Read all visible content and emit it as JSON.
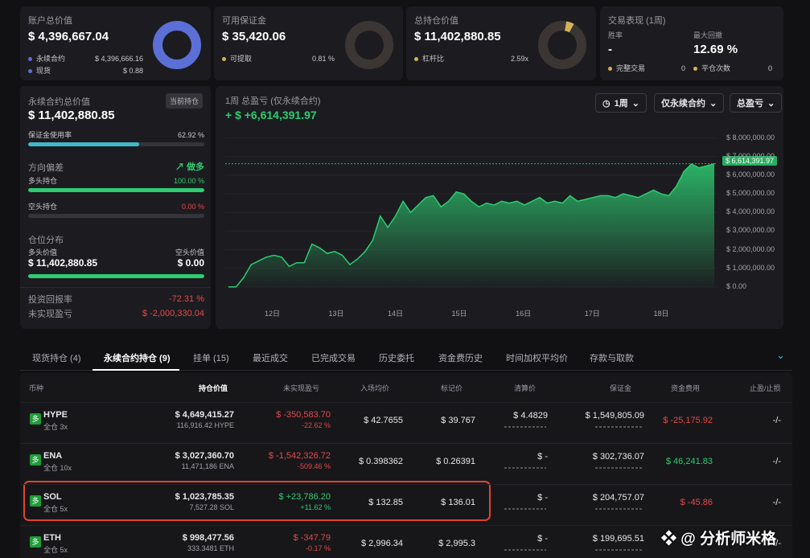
{
  "cards": {
    "total": {
      "title": "账户总价值",
      "value": "$ 4,396,667.04",
      "r1_label": "永续合约",
      "r1_value": "$ 4,396,666.16",
      "r2_label": "现货",
      "r2_value": "$ 0.88"
    },
    "margin": {
      "title": "可用保证金",
      "value": "$ 35,420.06",
      "r1_label": "可提取",
      "r1_value": "0.81 %"
    },
    "positions": {
      "title": "总持仓价值",
      "value": "$ 11,402,880.85",
      "r1_label": "杠杆比",
      "r1_value": "2.59x"
    },
    "perf": {
      "title": "交易表现 (1周)",
      "winrate_label": "胜率",
      "winrate_value": "-",
      "dd_label": "最大回撤",
      "dd_value": "12.69 %",
      "done_label": "完整交易",
      "done_value": "0",
      "flat_label": "平仓次数",
      "flat_value": "0"
    }
  },
  "colors": {
    "blue": "#5b6fd6",
    "green": "#2ecc71",
    "yellow": "#d4b25a",
    "red": "#e5484d"
  },
  "left": {
    "title": "永续合约总价值",
    "badge": "当前持仓",
    "value": "$ 11,402,880.85",
    "usage_label": "保证金使用率",
    "usage_value": "62.92 %",
    "usage_pct": 62.92,
    "bias_label": "方向偏差",
    "bias_value": "做多",
    "long_label": "多头持仓",
    "long_value": "100.00 %",
    "long_pct": 100,
    "short_label": "空头持仓",
    "short_value": "0.00 %",
    "short_pct": 0,
    "dist_label": "仓位分布",
    "dist_long_label": "多头价值",
    "dist_long_value": "$ 11,402,880.85",
    "dist_short_label": "空头价值",
    "dist_short_value": "$ 0.00",
    "roi_label": "投资回报率",
    "roi_value": "-72.31 %",
    "upnl_label": "未实现盈亏",
    "upnl_value": "$ -2,000,330.04"
  },
  "chart": {
    "title": "1周 总盈亏 (仅永续合约)",
    "value": "+ $ +6,614,391.97",
    "current_label": "$ 6,614,391.97",
    "dd1": "1周",
    "dd2": "仅永续合约",
    "dd3": "总盈亏"
  },
  "chart_data": {
    "type": "area",
    "ylim": [
      -1000000,
      8500000
    ],
    "yticks": [
      "$ 8,000,000.00",
      "$ 7,000,000.00",
      "$ 6,000,000.00",
      "$ 5,000,000.00",
      "$ 4,000,000.00",
      "$ 3,000,000.00",
      "$ 2,000,000.00",
      "$ 1,000,000.00",
      "$ 0.00"
    ],
    "ytick_values": [
      8000000,
      7000000,
      6000000,
      5000000,
      4000000,
      3000000,
      2000000,
      1000000,
      0
    ],
    "xticks": [
      "12日",
      "13日",
      "14日",
      "15日",
      "16日",
      "17日",
      "18日"
    ],
    "xtick_positions": [
      0.08,
      0.21,
      0.33,
      0.46,
      0.59,
      0.73,
      0.87
    ],
    "values": [
      0,
      0,
      500000,
      1200000,
      1400000,
      1600000,
      1700000,
      1600000,
      1100000,
      1300000,
      1300000,
      2300000,
      2100000,
      1800000,
      1900000,
      1700000,
      1200000,
      1500000,
      1900000,
      2500000,
      3800000,
      3200000,
      3800000,
      4600000,
      4000000,
      4400000,
      4800000,
      4900000,
      4300000,
      4600000,
      5100000,
      5000000,
      4600000,
      4300000,
      4500000,
      4400000,
      4600000,
      4500000,
      4600000,
      4400000,
      4600000,
      4800000,
      4500000,
      4600000,
      4500000,
      4900000,
      4600000,
      4700000,
      4800000,
      4900000,
      4900000,
      4800000,
      5000000,
      4900000,
      4800000,
      5000000,
      5200000,
      5000000,
      4900000,
      5400000,
      6200000,
      6600000,
      6400000,
      6500000,
      6614392
    ],
    "reference": 6614391.97
  },
  "tabs": [
    "现货持仓 (4)",
    "永续合约持仓 (9)",
    "挂单 (15)",
    "最近成交",
    "已完成交易",
    "历史委托",
    "资金费历史",
    "时间加权平均价",
    "存款与取款"
  ],
  "active_tab": 1,
  "headers": [
    "币种",
    "持仓价值",
    "未实现盈亏",
    "入场均价",
    "标记价",
    "清算价",
    "保证金",
    "资金费用",
    "止盈/止损"
  ],
  "rows": [
    {
      "side": "多",
      "coin": "HYPE",
      "mode": "全仓 3x",
      "value": "$ 4,649,415.27",
      "qty": "116,916.42 HYPE",
      "pnl": "$ -350,583.70",
      "pnl_pct": "-22.62 %",
      "entry": "$ 42.7655",
      "mark": "$ 39.767",
      "liq": "$ 4.4829",
      "margin": "$ 1,549,805.09",
      "fund": "$ -25,175.92",
      "tpsl": "-/-",
      "pnl_up": false,
      "fund_up": false
    },
    {
      "side": "多",
      "coin": "ENA",
      "mode": "全仓 10x",
      "value": "$ 3,027,360.70",
      "qty": "11,471,186 ENA",
      "pnl": "$ -1,542,326.72",
      "pnl_pct": "-509.46 %",
      "entry": "$ 0.398362",
      "mark": "$ 0.26391",
      "liq": "$ -",
      "margin": "$ 302,736.07",
      "fund": "$ 46,241.83",
      "tpsl": "-/-",
      "pnl_up": false,
      "fund_up": true
    },
    {
      "side": "多",
      "coin": "SOL",
      "mode": "全仓 5x",
      "value": "$ 1,023,785.35",
      "qty": "7,527.28 SOL",
      "pnl": "$ +23,786.20",
      "pnl_pct": "+11.62 %",
      "entry": "$ 132.85",
      "mark": "$ 136.01",
      "liq": "$ -",
      "margin": "$ 204,757.07",
      "fund": "$ -45.86",
      "tpsl": "-/-",
      "pnl_up": true,
      "fund_up": false
    },
    {
      "side": "多",
      "coin": "ETH",
      "mode": "全仓 5x",
      "value": "$ 998,477.56",
      "qty": "333.3481 ETH",
      "pnl": "$ -347.79",
      "pnl_pct": "-0.17 %",
      "entry": "$ 2,996.34",
      "mark": "$ 2,995.3",
      "liq": "$ -",
      "margin": "$ 199,695.51",
      "fund": "",
      "tpsl": "-/-",
      "pnl_up": false,
      "fund_up": false
    }
  ],
  "watermark": "分析师米格"
}
